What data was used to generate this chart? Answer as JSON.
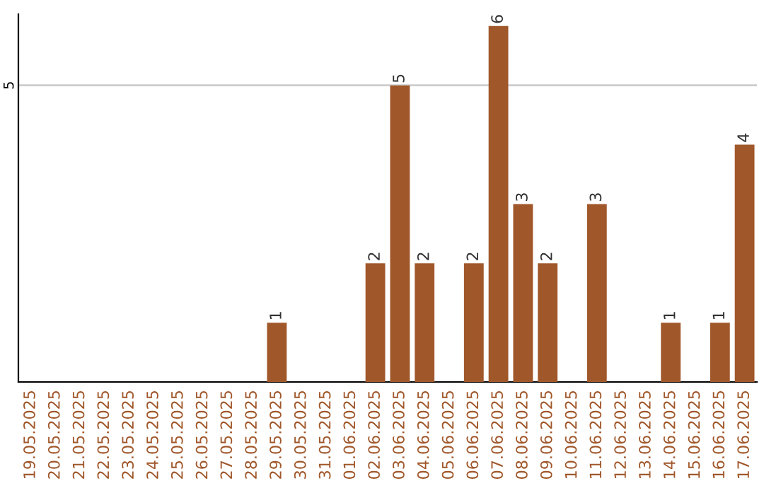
{
  "chart_data": {
    "type": "bar",
    "categories": [
      "19.05.2025",
      "20.05.2025",
      "21.05.2025",
      "22.05.2025",
      "23.05.2025",
      "24.05.2025",
      "25.05.2025",
      "26.05.2025",
      "27.05.2025",
      "28.05.2025",
      "29.05.2025",
      "30.05.2025",
      "31.05.2025",
      "01.06.2025",
      "02.06.2025",
      "03.06.2025",
      "04.06.2025",
      "05.06.2025",
      "06.06.2025",
      "07.06.2025",
      "08.06.2025",
      "09.06.2025",
      "10.06.2025",
      "11.06.2025",
      "12.06.2025",
      "13.06.2025",
      "14.06.2025",
      "15.06.2025",
      "16.06.2025",
      "17.06.2025"
    ],
    "values": [
      0,
      0,
      0,
      0,
      0,
      0,
      0,
      0,
      0,
      0,
      1,
      0,
      0,
      0,
      2,
      5,
      2,
      0,
      2,
      6,
      3,
      2,
      0,
      3,
      0,
      0,
      1,
      0,
      1,
      4
    ],
    "value_labels": [
      null,
      null,
      null,
      null,
      null,
      null,
      null,
      null,
      null,
      null,
      "1",
      null,
      null,
      null,
      "2",
      "5",
      "2",
      null,
      "2",
      "6",
      "3",
      "2",
      null,
      "3",
      null,
      null,
      "1",
      null,
      "1",
      "4"
    ],
    "color": "#a0572a",
    "ylim": [
      0,
      6.2
    ],
    "yticks": [
      5
    ],
    "grid": "y"
  }
}
